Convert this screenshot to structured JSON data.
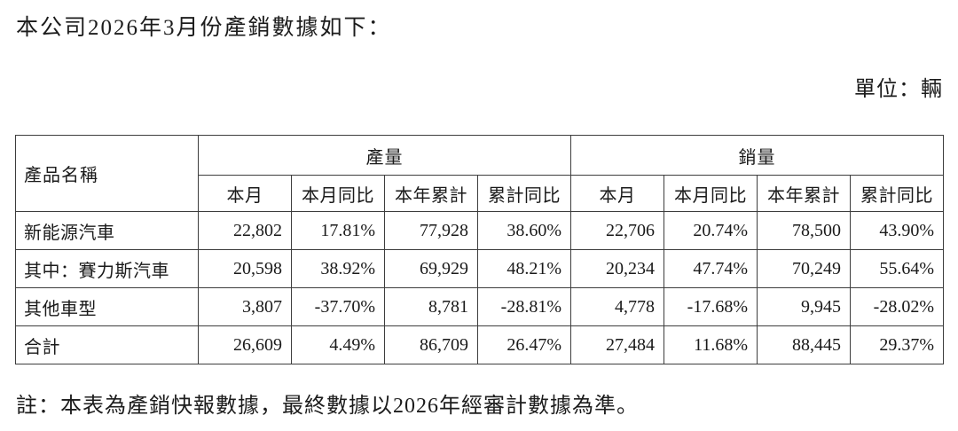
{
  "document": {
    "title": "本公司2026年3月份產銷數據如下：",
    "unit_label": "單位：輛",
    "footnote": "註：本表為產銷快報數據，最終數據以2026年經審計數據為準。"
  },
  "table": {
    "product_name_header": "產品名稱",
    "group_headers": {
      "production": "產量",
      "sales": "銷量"
    },
    "sub_headers": [
      "本月",
      "本月同比",
      "本年累計",
      "累計同比"
    ],
    "rows": [
      {
        "name": "新能源汽車",
        "values": [
          "22,802",
          "17.81%",
          "77,928",
          "38.60%",
          "22,706",
          "20.74%",
          "78,500",
          "43.90%"
        ]
      },
      {
        "name": "其中：賽力斯汽車",
        "values": [
          "20,598",
          "38.92%",
          "69,929",
          "48.21%",
          "20,234",
          "47.74%",
          "70,249",
          "55.64%"
        ]
      },
      {
        "name": "其他車型",
        "values": [
          "3,807",
          "-37.70%",
          "8,781",
          "-28.81%",
          "4,778",
          "-17.68%",
          "9,945",
          "-28.02%"
        ]
      },
      {
        "name": "合計",
        "values": [
          "26,609",
          "4.49%",
          "86,709",
          "26.47%",
          "27,484",
          "11.68%",
          "88,445",
          "29.37%"
        ]
      }
    ]
  }
}
